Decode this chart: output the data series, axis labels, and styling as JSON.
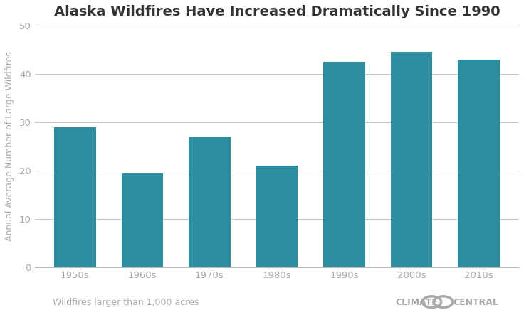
{
  "title": "Alaska Wildfires Have Increased Dramatically Since 1990",
  "categories": [
    "1950s",
    "1960s",
    "1970s",
    "1980s",
    "1990s",
    "2000s",
    "2010s"
  ],
  "values": [
    29.0,
    19.5,
    27.0,
    21.0,
    42.5,
    44.5,
    43.0
  ],
  "bar_color": "#2b8d9e",
  "ylabel": "Annual Average Number of Large Wildfires",
  "ylim": [
    0,
    50
  ],
  "yticks": [
    0,
    10,
    20,
    30,
    40,
    50
  ],
  "footnote": "Wildfires larger than 1,000 acres",
  "background_color": "#ffffff",
  "grid_color": "#bbbbbb",
  "title_fontsize": 14,
  "ylabel_fontsize": 9,
  "tick_fontsize": 9.5,
  "footnote_fontsize": 9,
  "source_fontsize": 9,
  "source_color": "#aaaaaa",
  "footnote_color": "#aaaaaa",
  "title_color": "#333333",
  "tick_color": "#aaaaaa",
  "ylabel_color": "#aaaaaa"
}
